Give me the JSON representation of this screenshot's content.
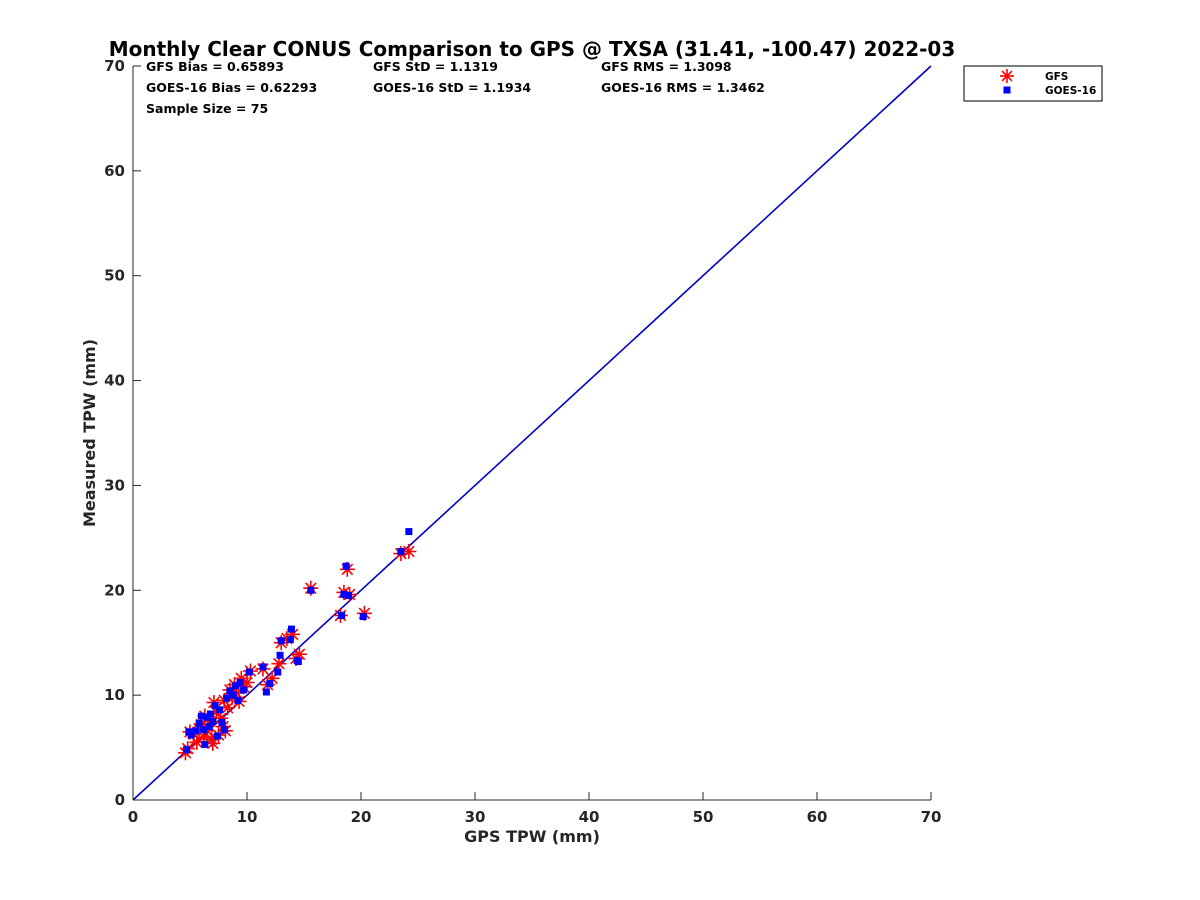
{
  "chart_data": {
    "type": "scatter",
    "title": "Monthly Clear CONUS Comparison to GPS @ TXSA (31.41, -100.47) 2022-03",
    "xlabel": "GPS TPW (mm)",
    "ylabel": "Measured TPW (mm)",
    "xlim": [
      0,
      70
    ],
    "ylim": [
      0,
      70
    ],
    "xticks": [
      "0",
      "10",
      "20",
      "30",
      "40",
      "50",
      "60",
      "70"
    ],
    "yticks": [
      "0",
      "10",
      "20",
      "30",
      "40",
      "50",
      "60",
      "70"
    ],
    "grid": false,
    "legend_position": "outside-top-right",
    "stats": [
      [
        "GFS Bias = 0.65893",
        "GFS StD = 1.1319",
        "GFS RMS = 1.3098"
      ],
      [
        "GOES-16 Bias = 0.62293",
        "GOES-16 StD = 1.1934",
        "GOES-16 RMS = 1.3462"
      ],
      [
        "Sample Size = 75"
      ]
    ],
    "reference_line": {
      "x": [
        0,
        70
      ],
      "y": [
        0,
        70
      ],
      "color": "#0000cc"
    },
    "series": [
      {
        "name": "GFS",
        "marker": "asterisk",
        "color": "#ff0000",
        "points": [
          [
            4.6,
            4.5
          ],
          [
            4.8,
            4.9
          ],
          [
            5.0,
            6.5
          ],
          [
            5.3,
            6.3
          ],
          [
            5.6,
            5.5
          ],
          [
            5.8,
            6.8
          ],
          [
            6.0,
            7.2
          ],
          [
            6.2,
            6.0
          ],
          [
            6.3,
            8.0
          ],
          [
            6.5,
            6.6
          ],
          [
            6.7,
            7.5
          ],
          [
            6.9,
            5.8
          ],
          [
            7.0,
            5.4
          ],
          [
            7.1,
            9.3
          ],
          [
            7.3,
            8.4
          ],
          [
            7.5,
            6.2
          ],
          [
            7.7,
            7.8
          ],
          [
            7.9,
            7.0
          ],
          [
            8.0,
            9.5
          ],
          [
            8.1,
            6.6
          ],
          [
            8.3,
            8.8
          ],
          [
            8.5,
            10.5
          ],
          [
            8.7,
            9.8
          ],
          [
            8.9,
            11.0
          ],
          [
            9.1,
            10.2
          ],
          [
            9.3,
            9.4
          ],
          [
            9.5,
            11.6
          ],
          [
            9.7,
            10.8
          ],
          [
            10.0,
            11.2
          ],
          [
            10.3,
            12.3
          ],
          [
            11.4,
            12.5
          ],
          [
            11.8,
            11.0
          ],
          [
            12.2,
            11.6
          ],
          [
            12.8,
            13.0
          ],
          [
            13.0,
            15.0
          ],
          [
            13.5,
            15.4
          ],
          [
            14.0,
            15.8
          ],
          [
            14.3,
            13.5
          ],
          [
            14.6,
            13.9
          ],
          [
            15.6,
            20.2
          ],
          [
            18.2,
            17.6
          ],
          [
            18.5,
            19.8
          ],
          [
            18.8,
            22.0
          ],
          [
            19.0,
            19.6
          ],
          [
            20.3,
            17.8
          ],
          [
            23.5,
            23.5
          ],
          [
            24.2,
            23.7
          ]
        ]
      },
      {
        "name": "GOES-16",
        "marker": "square",
        "color": "#0000ff",
        "points": [
          [
            4.7,
            4.8
          ],
          [
            4.9,
            6.5
          ],
          [
            5.1,
            6.2
          ],
          [
            5.5,
            6.6
          ],
          [
            5.8,
            7.3
          ],
          [
            6.0,
            8.0
          ],
          [
            6.2,
            6.7
          ],
          [
            6.3,
            5.3
          ],
          [
            6.5,
            7.9
          ],
          [
            6.7,
            7.0
          ],
          [
            6.8,
            8.2
          ],
          [
            7.0,
            7.5
          ],
          [
            7.2,
            9.0
          ],
          [
            7.4,
            6.1
          ],
          [
            7.6,
            8.6
          ],
          [
            7.8,
            7.4
          ],
          [
            8.0,
            6.7
          ],
          [
            8.2,
            9.7
          ],
          [
            8.5,
            10.4
          ],
          [
            8.8,
            10.0
          ],
          [
            9.0,
            10.9
          ],
          [
            9.2,
            9.5
          ],
          [
            9.4,
            11.2
          ],
          [
            9.7,
            10.5
          ],
          [
            10.2,
            12.2
          ],
          [
            11.4,
            12.7
          ],
          [
            11.7,
            10.3
          ],
          [
            12.0,
            11.1
          ],
          [
            12.7,
            12.2
          ],
          [
            12.9,
            13.8
          ],
          [
            13.0,
            15.2
          ],
          [
            13.8,
            15.3
          ],
          [
            13.9,
            16.3
          ],
          [
            14.4,
            13.3
          ],
          [
            14.5,
            13.2
          ],
          [
            15.6,
            20.0
          ],
          [
            18.3,
            17.6
          ],
          [
            18.5,
            19.6
          ],
          [
            18.7,
            22.3
          ],
          [
            18.9,
            19.5
          ],
          [
            20.2,
            17.5
          ],
          [
            23.5,
            23.7
          ],
          [
            24.2,
            25.6
          ]
        ]
      }
    ]
  }
}
